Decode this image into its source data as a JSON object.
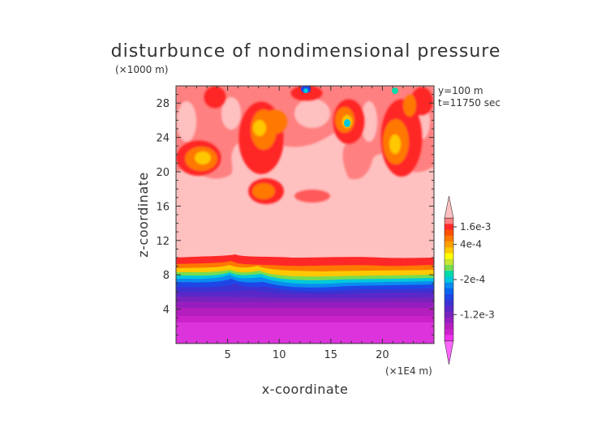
{
  "chart_data": {
    "type": "heatmap",
    "title": "disturbunce of nondimensional pressure",
    "xlabel": "x-coordinate",
    "ylabel": "z-coordinate",
    "x_unit": "(×1E4 m)",
    "y_unit": "(×1000 m)",
    "annotations": [
      "y=100  m",
      "t=11750 sec"
    ],
    "xlim": [
      0,
      25
    ],
    "ylim": [
      0,
      30
    ],
    "x_ticks": [
      5,
      10,
      15,
      20
    ],
    "y_ticks": [
      4,
      8,
      12,
      16,
      20,
      24,
      28
    ],
    "colorbar": {
      "labels": [
        "1.6e-3",
        "4e-4",
        "-2e-4",
        "-1.2e-3"
      ],
      "colors": [
        "#ff66ff",
        "#ee33ee",
        "#cc22cc",
        "#b41ebe",
        "#961ebe",
        "#7823be",
        "#5a28c8",
        "#3c32d2",
        "#1e46e6",
        "#0a64f0",
        "#0a8cf0",
        "#00c8dc",
        "#00dcaa",
        "#78dc50",
        "#c8e632",
        "#ffff00",
        "#ffc800",
        "#ffa000",
        "#ff7800",
        "#ff5000",
        "#ff2828",
        "#ff8080",
        "#ffc0c0"
      ],
      "label_colors": [
        "#ff2828",
        "#ffa000",
        "#00c8dc",
        "#7823be"
      ]
    },
    "colors": {
      "bottom": "#dd33dd",
      "background_upper": "#ffc0c0",
      "light_red": "#ff8080",
      "red": "#ff2828",
      "orange": "#ff7800",
      "yellow": "#ffc800",
      "blue": "#1e46e6",
      "cyan": "#00c8dc"
    }
  }
}
